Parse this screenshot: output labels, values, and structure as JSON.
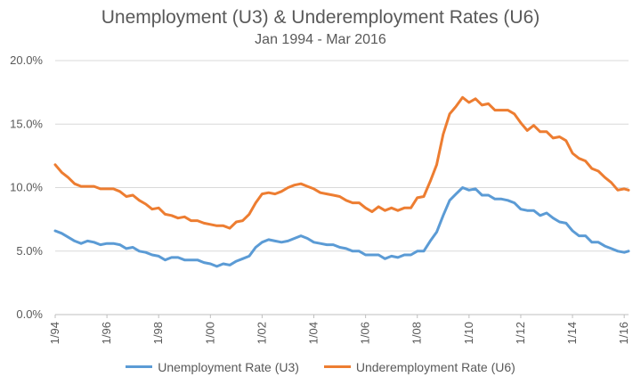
{
  "chart_data": {
    "type": "line",
    "title": "Unemployment (U3) & Underemployment Rates (U6)",
    "subtitle": "Jan 1994 - Mar 2016",
    "xlabel": "",
    "ylabel": "",
    "x_range": [
      "1994-01",
      "2016-03"
    ],
    "ylim": [
      0,
      20
    ],
    "y_ticks": [
      "0.0%",
      "5.0%",
      "10.0%",
      "15.0%",
      "20.0%"
    ],
    "x_ticks": [
      "1/94",
      "1/96",
      "1/98",
      "1/00",
      "1/02",
      "1/04",
      "1/06",
      "1/08",
      "1/10",
      "1/12",
      "1/14",
      "1/16"
    ],
    "grid": "horizontal",
    "legend_position": "bottom",
    "series": [
      {
        "name": "Unemployment Rate (U3)",
        "color": "#5b9bd5",
        "points": [
          [
            "1994-01",
            6.6
          ],
          [
            "1994-04",
            6.4
          ],
          [
            "1994-07",
            6.1
          ],
          [
            "1994-10",
            5.8
          ],
          [
            "1995-01",
            5.6
          ],
          [
            "1995-04",
            5.8
          ],
          [
            "1995-07",
            5.7
          ],
          [
            "1995-10",
            5.5
          ],
          [
            "1996-01",
            5.6
          ],
          [
            "1996-04",
            5.6
          ],
          [
            "1996-07",
            5.5
          ],
          [
            "1996-10",
            5.2
          ],
          [
            "1997-01",
            5.3
          ],
          [
            "1997-04",
            5.0
          ],
          [
            "1997-07",
            4.9
          ],
          [
            "1997-10",
            4.7
          ],
          [
            "1998-01",
            4.6
          ],
          [
            "1998-04",
            4.3
          ],
          [
            "1998-07",
            4.5
          ],
          [
            "1998-10",
            4.5
          ],
          [
            "1999-01",
            4.3
          ],
          [
            "1999-04",
            4.3
          ],
          [
            "1999-07",
            4.3
          ],
          [
            "1999-10",
            4.1
          ],
          [
            "2000-01",
            4.0
          ],
          [
            "2000-04",
            3.8
          ],
          [
            "2000-07",
            4.0
          ],
          [
            "2000-10",
            3.9
          ],
          [
            "2001-01",
            4.2
          ],
          [
            "2001-04",
            4.4
          ],
          [
            "2001-07",
            4.6
          ],
          [
            "2001-10",
            5.3
          ],
          [
            "2002-01",
            5.7
          ],
          [
            "2002-04",
            5.9
          ],
          [
            "2002-07",
            5.8
          ],
          [
            "2002-10",
            5.7
          ],
          [
            "2003-01",
            5.8
          ],
          [
            "2003-04",
            6.0
          ],
          [
            "2003-07",
            6.2
          ],
          [
            "2003-10",
            6.0
          ],
          [
            "2004-01",
            5.7
          ],
          [
            "2004-04",
            5.6
          ],
          [
            "2004-07",
            5.5
          ],
          [
            "2004-10",
            5.5
          ],
          [
            "2005-01",
            5.3
          ],
          [
            "2005-04",
            5.2
          ],
          [
            "2005-07",
            5.0
          ],
          [
            "2005-10",
            5.0
          ],
          [
            "2006-01",
            4.7
          ],
          [
            "2006-04",
            4.7
          ],
          [
            "2006-07",
            4.7
          ],
          [
            "2006-10",
            4.4
          ],
          [
            "2007-01",
            4.6
          ],
          [
            "2007-04",
            4.5
          ],
          [
            "2007-07",
            4.7
          ],
          [
            "2007-10",
            4.7
          ],
          [
            "2008-01",
            5.0
          ],
          [
            "2008-04",
            5.0
          ],
          [
            "2008-07",
            5.8
          ],
          [
            "2008-10",
            6.5
          ],
          [
            "2009-01",
            7.8
          ],
          [
            "2009-04",
            9.0
          ],
          [
            "2009-07",
            9.5
          ],
          [
            "2009-10",
            10.0
          ],
          [
            "2010-01",
            9.8
          ],
          [
            "2010-04",
            9.9
          ],
          [
            "2010-07",
            9.4
          ],
          [
            "2010-10",
            9.4
          ],
          [
            "2011-01",
            9.1
          ],
          [
            "2011-04",
            9.1
          ],
          [
            "2011-07",
            9.0
          ],
          [
            "2011-10",
            8.8
          ],
          [
            "2012-01",
            8.3
          ],
          [
            "2012-04",
            8.2
          ],
          [
            "2012-07",
            8.2
          ],
          [
            "2012-10",
            7.8
          ],
          [
            "2013-01",
            8.0
          ],
          [
            "2013-04",
            7.6
          ],
          [
            "2013-07",
            7.3
          ],
          [
            "2013-10",
            7.2
          ],
          [
            "2014-01",
            6.6
          ],
          [
            "2014-04",
            6.2
          ],
          [
            "2014-07",
            6.2
          ],
          [
            "2014-10",
            5.7
          ],
          [
            "2015-01",
            5.7
          ],
          [
            "2015-04",
            5.4
          ],
          [
            "2015-07",
            5.2
          ],
          [
            "2015-10",
            5.0
          ],
          [
            "2016-01",
            4.9
          ],
          [
            "2016-03",
            5.0
          ]
        ]
      },
      {
        "name": "Underemployment Rate (U6)",
        "color": "#ed7d31",
        "points": [
          [
            "1994-01",
            11.8
          ],
          [
            "1994-04",
            11.2
          ],
          [
            "1994-07",
            10.8
          ],
          [
            "1994-10",
            10.3
          ],
          [
            "1995-01",
            10.1
          ],
          [
            "1995-04",
            10.1
          ],
          [
            "1995-07",
            10.1
          ],
          [
            "1995-10",
            9.9
          ],
          [
            "1996-01",
            9.9
          ],
          [
            "1996-04",
            9.9
          ],
          [
            "1996-07",
            9.7
          ],
          [
            "1996-10",
            9.3
          ],
          [
            "1997-01",
            9.4
          ],
          [
            "1997-04",
            9.0
          ],
          [
            "1997-07",
            8.7
          ],
          [
            "1997-10",
            8.3
          ],
          [
            "1998-01",
            8.4
          ],
          [
            "1998-04",
            7.9
          ],
          [
            "1998-07",
            7.8
          ],
          [
            "1998-10",
            7.6
          ],
          [
            "1999-01",
            7.7
          ],
          [
            "1999-04",
            7.4
          ],
          [
            "1999-07",
            7.4
          ],
          [
            "1999-10",
            7.2
          ],
          [
            "2000-01",
            7.1
          ],
          [
            "2000-04",
            7.0
          ],
          [
            "2000-07",
            7.0
          ],
          [
            "2000-10",
            6.8
          ],
          [
            "2001-01",
            7.3
          ],
          [
            "2001-04",
            7.4
          ],
          [
            "2001-07",
            7.9
          ],
          [
            "2001-10",
            8.8
          ],
          [
            "2002-01",
            9.5
          ],
          [
            "2002-04",
            9.6
          ],
          [
            "2002-07",
            9.5
          ],
          [
            "2002-10",
            9.7
          ],
          [
            "2003-01",
            10.0
          ],
          [
            "2003-04",
            10.2
          ],
          [
            "2003-07",
            10.3
          ],
          [
            "2003-10",
            10.1
          ],
          [
            "2004-01",
            9.9
          ],
          [
            "2004-04",
            9.6
          ],
          [
            "2004-07",
            9.5
          ],
          [
            "2004-10",
            9.4
          ],
          [
            "2005-01",
            9.3
          ],
          [
            "2005-04",
            9.0
          ],
          [
            "2005-07",
            8.8
          ],
          [
            "2005-10",
            8.8
          ],
          [
            "2006-01",
            8.4
          ],
          [
            "2006-04",
            8.1
          ],
          [
            "2006-07",
            8.5
          ],
          [
            "2006-10",
            8.2
          ],
          [
            "2007-01",
            8.4
          ],
          [
            "2007-04",
            8.2
          ],
          [
            "2007-07",
            8.4
          ],
          [
            "2007-10",
            8.4
          ],
          [
            "2008-01",
            9.2
          ],
          [
            "2008-04",
            9.3
          ],
          [
            "2008-07",
            10.5
          ],
          [
            "2008-10",
            11.8
          ],
          [
            "2009-01",
            14.2
          ],
          [
            "2009-04",
            15.8
          ],
          [
            "2009-07",
            16.4
          ],
          [
            "2009-10",
            17.1
          ],
          [
            "2010-01",
            16.7
          ],
          [
            "2010-04",
            17.0
          ],
          [
            "2010-07",
            16.5
          ],
          [
            "2010-10",
            16.6
          ],
          [
            "2011-01",
            16.1
          ],
          [
            "2011-04",
            16.1
          ],
          [
            "2011-07",
            16.1
          ],
          [
            "2011-10",
            15.8
          ],
          [
            "2012-01",
            15.1
          ],
          [
            "2012-04",
            14.5
          ],
          [
            "2012-07",
            14.9
          ],
          [
            "2012-10",
            14.4
          ],
          [
            "2013-01",
            14.4
          ],
          [
            "2013-04",
            13.9
          ],
          [
            "2013-07",
            14.0
          ],
          [
            "2013-10",
            13.7
          ],
          [
            "2014-01",
            12.7
          ],
          [
            "2014-04",
            12.3
          ],
          [
            "2014-07",
            12.1
          ],
          [
            "2014-10",
            11.5
          ],
          [
            "2015-01",
            11.3
          ],
          [
            "2015-04",
            10.8
          ],
          [
            "2015-07",
            10.4
          ],
          [
            "2015-10",
            9.8
          ],
          [
            "2016-01",
            9.9
          ],
          [
            "2016-03",
            9.8
          ]
        ]
      }
    ]
  }
}
